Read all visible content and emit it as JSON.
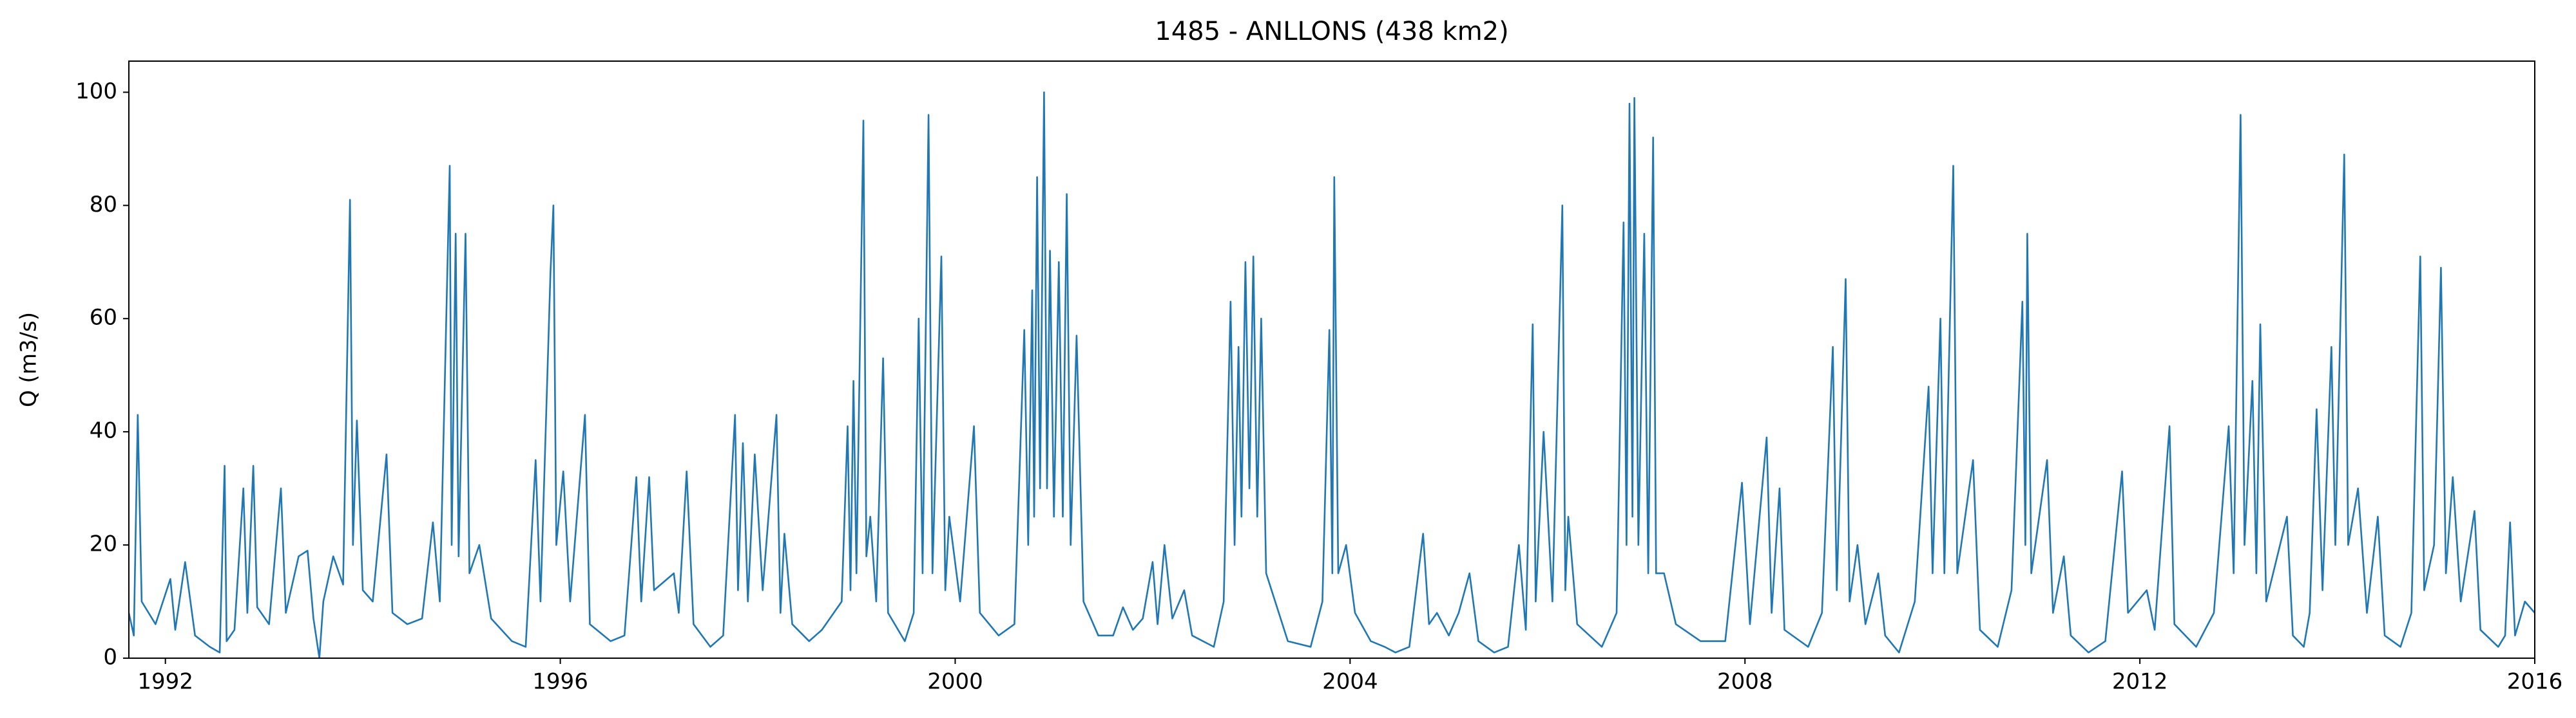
{
  "chart_data": {
    "type": "line",
    "title": "1485 - ANLLONS (438 km2)",
    "y_label": "Q (m3/s)",
    "color": "#1f77b4",
    "grid": false,
    "xlim": [
      1991.63,
      2016
    ],
    "ylim": [
      0,
      105.5
    ],
    "xticks": [
      1992,
      1996,
      2000,
      2004,
      2008,
      2012,
      2016
    ],
    "yticks": [
      0,
      20,
      40,
      60,
      80,
      100
    ],
    "x": [
      1991.63,
      1991.68,
      1991.72,
      1991.76,
      1991.9,
      1992.05,
      1992.1,
      1992.2,
      1992.3,
      1992.45,
      1992.55,
      1992.6,
      1992.62,
      1992.7,
      1992.79,
      1992.83,
      1992.89,
      1992.93,
      1993.05,
      1993.17,
      1993.22,
      1993.35,
      1993.44,
      1993.5,
      1993.56,
      1993.6,
      1993.7,
      1993.8,
      1993.87,
      1993.9,
      1993.94,
      1994.0,
      1994.1,
      1994.24,
      1994.3,
      1994.45,
      1994.6,
      1994.71,
      1994.78,
      1994.88,
      1994.9,
      1994.94,
      1994.97,
      1995.04,
      1995.08,
      1995.18,
      1995.3,
      1995.51,
      1995.65,
      1995.75,
      1995.8,
      1995.9,
      1995.93,
      1995.96,
      1996.03,
      1996.1,
      1996.25,
      1996.3,
      1996.51,
      1996.65,
      1996.77,
      1996.82,
      1996.9,
      1996.95,
      1997.15,
      1997.2,
      1997.28,
      1997.35,
      1997.52,
      1997.65,
      1997.77,
      1997.8,
      1997.85,
      1997.9,
      1997.97,
      1998.05,
      1998.19,
      1998.23,
      1998.27,
      1998.35,
      1998.52,
      1998.65,
      1998.77,
      1998.85,
      1998.91,
      1998.94,
      1998.97,
      1999.0,
      1999.07,
      1999.1,
      1999.14,
      1999.2,
      1999.27,
      1999.32,
      1999.49,
      1999.58,
      1999.63,
      1999.67,
      1999.73,
      1999.77,
      1999.86,
      1999.9,
      1999.94,
      2000.05,
      2000.19,
      2000.25,
      2000.44,
      2000.6,
      2000.7,
      2000.74,
      2000.78,
      2000.8,
      2000.83,
      2000.86,
      2000.9,
      2000.93,
      2000.96,
      2001.0,
      2001.05,
      2001.09,
      2001.13,
      2001.17,
      2001.23,
      2001.3,
      2001.45,
      2001.6,
      2001.7,
      2001.8,
      2001.9,
      2002.0,
      2002.05,
      2002.12,
      2002.2,
      2002.32,
      2002.4,
      2002.62,
      2002.72,
      2002.79,
      2002.83,
      2002.87,
      2002.9,
      2002.94,
      2002.98,
      2003.02,
      2003.06,
      2003.1,
      2003.15,
      2003.37,
      2003.6,
      2003.72,
      2003.79,
      2003.82,
      2003.84,
      2003.88,
      2003.96,
      2004.05,
      2004.21,
      2004.35,
      2004.46,
      2004.6,
      2004.74,
      2004.8,
      2004.88,
      2005.0,
      2005.1,
      2005.21,
      2005.3,
      2005.46,
      2005.6,
      2005.71,
      2005.78,
      2005.85,
      2005.88,
      2005.96,
      2006.05,
      2006.15,
      2006.18,
      2006.21,
      2006.3,
      2006.55,
      2006.7,
      2006.77,
      2006.8,
      2006.83,
      2006.86,
      2006.88,
      2006.92,
      2006.98,
      2007.02,
      2007.07,
      2007.1,
      2007.18,
      2007.3,
      2007.55,
      2007.8,
      2007.97,
      2008.05,
      2008.22,
      2008.27,
      2008.35,
      2008.4,
      2008.64,
      2008.78,
      2008.89,
      2008.93,
      2009.02,
      2009.06,
      2009.14,
      2009.22,
      2009.35,
      2009.42,
      2009.56,
      2009.72,
      2009.86,
      2009.9,
      2009.98,
      2010.02,
      2010.11,
      2010.15,
      2010.31,
      2010.38,
      2010.56,
      2010.7,
      2010.81,
      2010.84,
      2010.86,
      2010.9,
      2011.06,
      2011.12,
      2011.23,
      2011.3,
      2011.48,
      2011.65,
      2011.82,
      2011.88,
      2012.07,
      2012.15,
      2012.3,
      2012.35,
      2012.57,
      2012.75,
      2012.9,
      2012.95,
      2013.02,
      2013.06,
      2013.14,
      2013.18,
      2013.22,
      2013.28,
      2013.49,
      2013.55,
      2013.66,
      2013.72,
      2013.79,
      2013.85,
      2013.94,
      2013.98,
      2014.07,
      2014.11,
      2014.21,
      2014.3,
      2014.41,
      2014.48,
      2014.64,
      2014.75,
      2014.84,
      2014.88,
      2014.98,
      2015.05,
      2015.1,
      2015.17,
      2015.25,
      2015.39,
      2015.45,
      2015.63,
      2015.7,
      2015.75,
      2015.8,
      2015.9,
      2016.0
    ],
    "values": [
      8,
      4,
      43,
      10,
      6,
      14,
      5,
      17,
      4,
      2,
      1,
      34,
      3,
      5,
      30,
      8,
      34,
      9,
      6,
      30,
      8,
      18,
      19,
      7,
      0,
      10,
      18,
      13,
      81,
      20,
      42,
      12,
      10,
      36,
      8,
      6,
      7,
      24,
      10,
      87,
      20,
      75,
      18,
      75,
      15,
      20,
      7,
      3,
      2,
      35,
      10,
      68,
      80,
      20,
      33,
      10,
      43,
      6,
      3,
      4,
      32,
      10,
      32,
      12,
      15,
      8,
      33,
      6,
      2,
      4,
      43,
      12,
      38,
      10,
      36,
      12,
      43,
      8,
      22,
      6,
      3,
      5,
      8,
      10,
      41,
      12,
      49,
      15,
      95,
      18,
      25,
      10,
      53,
      8,
      3,
      8,
      60,
      15,
      96,
      15,
      71,
      12,
      25,
      10,
      41,
      8,
      4,
      6,
      58,
      20,
      65,
      25,
      85,
      30,
      100,
      30,
      72,
      25,
      70,
      25,
      82,
      20,
      57,
      10,
      4,
      4,
      9,
      5,
      7,
      17,
      6,
      20,
      7,
      12,
      4,
      2,
      10,
      63,
      20,
      55,
      25,
      70,
      30,
      71,
      25,
      60,
      15,
      3,
      2,
      10,
      58,
      15,
      85,
      15,
      20,
      8,
      3,
      2,
      1,
      2,
      22,
      6,
      8,
      4,
      8,
      15,
      3,
      1,
      2,
      20,
      5,
      59,
      10,
      40,
      10,
      80,
      12,
      25,
      6,
      2,
      8,
      77,
      20,
      98,
      25,
      99,
      20,
      75,
      15,
      92,
      15,
      15,
      6,
      3,
      3,
      31,
      6,
      39,
      8,
      30,
      5,
      2,
      8,
      55,
      12,
      67,
      10,
      20,
      6,
      15,
      4,
      1,
      10,
      48,
      15,
      60,
      15,
      87,
      15,
      35,
      5,
      2,
      12,
      63,
      20,
      75,
      15,
      35,
      8,
      18,
      4,
      1,
      3,
      33,
      8,
      12,
      5,
      41,
      6,
      2,
      8,
      41,
      15,
      96,
      20,
      49,
      15,
      59,
      10,
      25,
      4,
      2,
      8,
      44,
      12,
      55,
      20,
      89,
      20,
      30,
      8,
      25,
      4,
      2,
      8,
      71,
      12,
      20,
      69,
      15,
      32,
      10,
      26,
      5,
      2,
      4,
      24,
      4,
      10,
      8
    ]
  }
}
